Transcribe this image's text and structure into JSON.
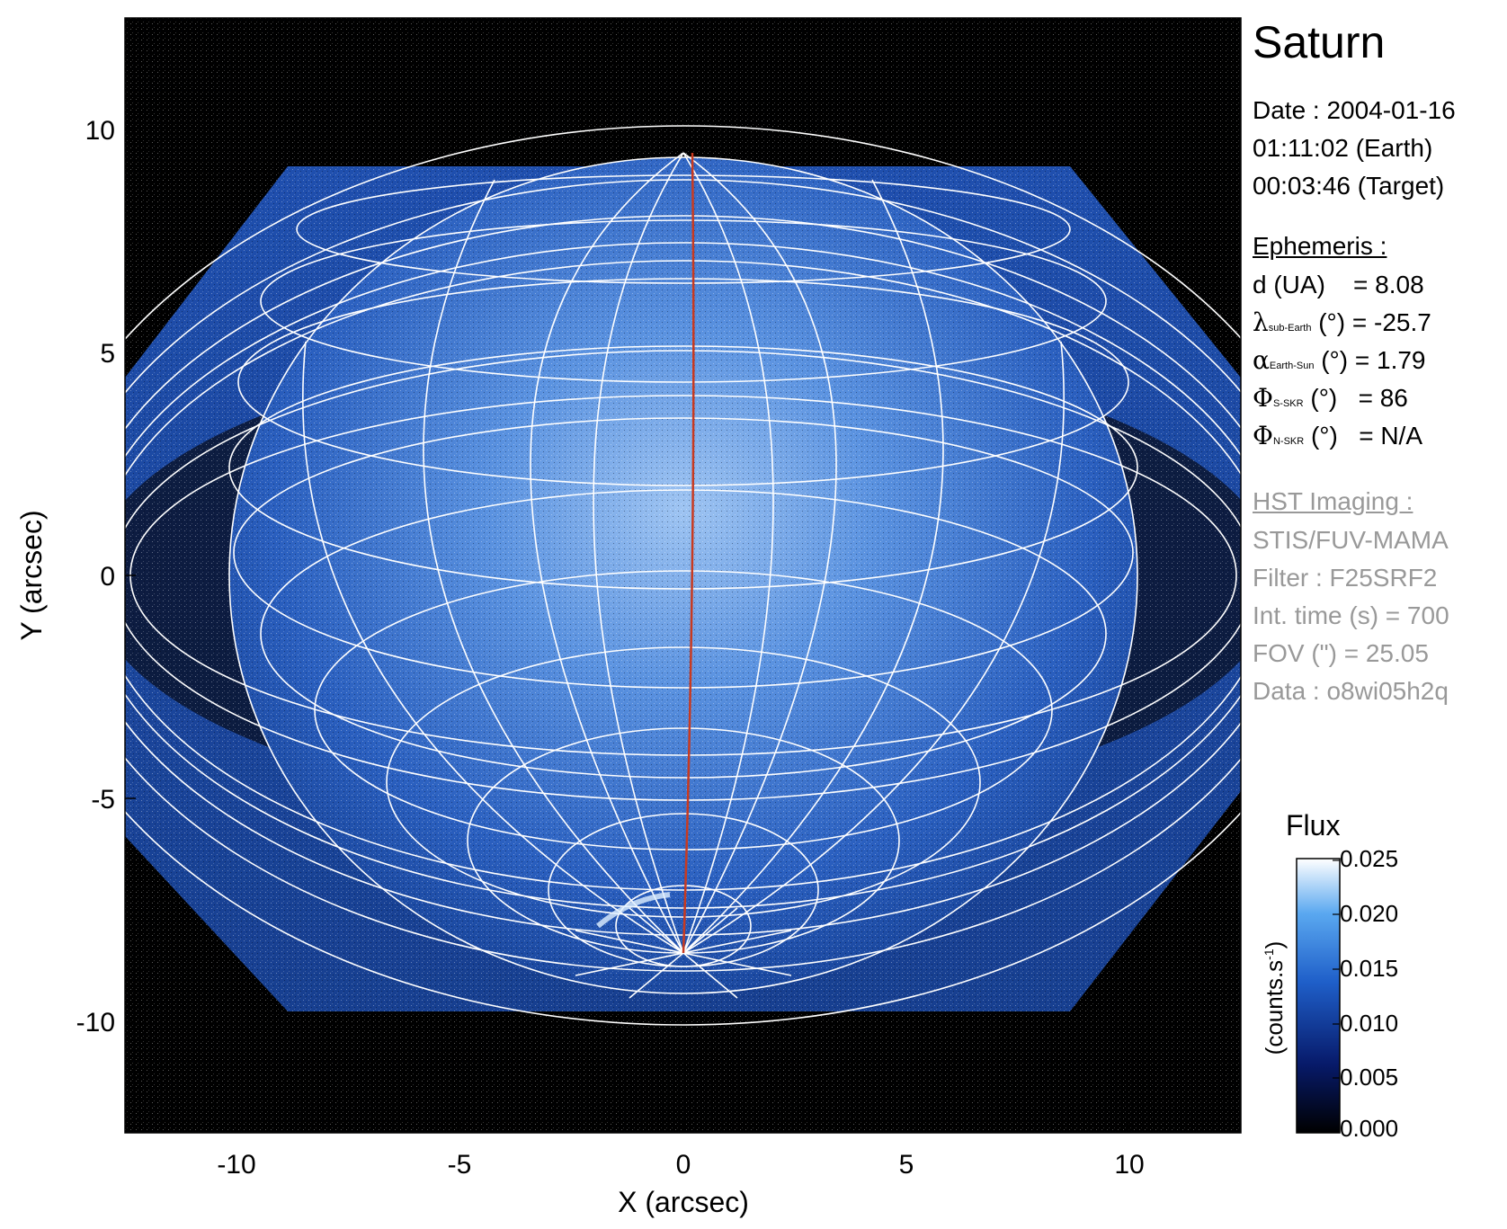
{
  "title": "Saturn",
  "observation": {
    "date_line": "Date : 2004-01-16",
    "time_earth": "01:11:02 (Earth)",
    "time_target": "00:03:46 (Target)"
  },
  "ephemeris": {
    "heading": "Ephemeris :",
    "distance": {
      "label": "d (UA)",
      "value": "= 8.08"
    },
    "sub_earth_lat": {
      "symbol": "λ",
      "subscript": "sub-Earth",
      "unit": "(°)",
      "value": "= -25.7"
    },
    "phase_angle": {
      "symbol": "α",
      "subscript": "Earth-Sun",
      "unit": "(°)",
      "value": "= 1.79"
    },
    "phi_s_skr": {
      "symbol": "Φ",
      "subscript": "S-SKR",
      "unit": "(°)",
      "value": "= 86"
    },
    "phi_n_skr": {
      "symbol": "Φ",
      "subscript": "N-SKR",
      "unit": "(°)",
      "value": "= N/A"
    }
  },
  "imaging": {
    "heading": "HST Imaging :",
    "instrument": "STIS/FUV-MAMA",
    "filter": "Filter : F25SRF2",
    "int_time": "Int. time (s) = 700",
    "fov": "FOV (\") = 25.05",
    "data_id": "Data : o8wi05h2q"
  },
  "axes": {
    "xlabel": "X (arcsec)",
    "ylabel": "Y (arcsec)",
    "x_ticks": [
      "-10",
      "-5",
      "0",
      "5",
      "10"
    ],
    "y_ticks": [
      "10",
      "5",
      "0",
      "-5",
      "-10"
    ],
    "range": [
      -12.5,
      12.5
    ]
  },
  "colorbar": {
    "title": "Flux",
    "unit_label": "(counts.s",
    "unit_exp": "-1",
    "unit_close": ")",
    "ticks": [
      "0.025",
      "0.020",
      "0.015",
      "0.010",
      "0.005",
      "0.000"
    ],
    "range": [
      0.0,
      0.025
    ]
  },
  "colors": {
    "background": "#000000",
    "disk": "#3b74d0",
    "grid": "#ffffff",
    "meridian": "#c83a20",
    "gray_text": "#999999"
  }
}
